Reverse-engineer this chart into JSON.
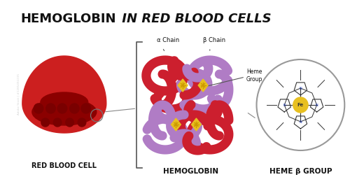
{
  "title_bold": "HEMOGLOBIN",
  "title_italic": " IN RED BLOOD CELLS",
  "bg_color": "#ffffff",
  "rbc_label": "RED BLOOD CELL",
  "hemoglobin_label": "HEMOGLOBIN",
  "heme_label": "HEME β GROUP",
  "alpha_chain_label": "α Chain",
  "beta_chain_label": "β Chain",
  "heme_group_label": "Heme\nGroup",
  "rbc_body_color": "#cc1f1f",
  "rbc_inner_color": "#8b0000",
  "rbc_dot_color": "#7a0000",
  "alpha_color": "#cc1f2e",
  "beta_color": "#b07cc5",
  "heme_color": "#e8c020",
  "fe_color": "#e8c020",
  "label_color": "#111111",
  "line_color": "#555555"
}
